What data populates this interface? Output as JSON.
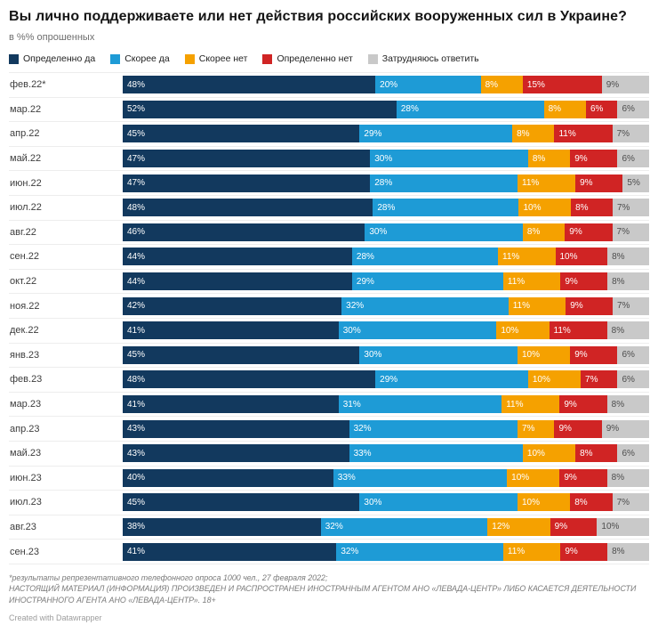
{
  "header": {
    "title": "Вы лично поддерживаете или нет действия российских вооруженных сил в Украине?",
    "subtitle": "в %% опрошенных"
  },
  "chart_data": {
    "type": "bar",
    "variant": "horizontal-stacked-100",
    "unit": "%",
    "xlim": [
      0,
      100
    ],
    "grid": false,
    "legend_position": "top",
    "value_labels": "inside-left",
    "categories": [
      "фев.22*",
      "мар.22",
      "апр.22",
      "май.22",
      "июн.22",
      "июл.22",
      "авг.22",
      "сен.22",
      "окт.22",
      "ноя.22",
      "дек.22",
      "янв.23",
      "фев.23",
      "мар.23",
      "апр.23",
      "май.23",
      "июн.23",
      "июл.23",
      "авг.23",
      "сен.23"
    ],
    "series": [
      {
        "name": "Определенно да",
        "color": "#12395E",
        "text_color": "#ffffff",
        "values": [
          48,
          52,
          45,
          47,
          47,
          48,
          46,
          44,
          44,
          42,
          41,
          45,
          48,
          41,
          43,
          43,
          40,
          45,
          38,
          41
        ]
      },
      {
        "name": "Скорее да",
        "color": "#1E9BD6",
        "text_color": "#ffffff",
        "values": [
          20,
          28,
          29,
          30,
          28,
          28,
          30,
          28,
          29,
          32,
          30,
          30,
          29,
          31,
          32,
          33,
          33,
          30,
          32,
          32
        ]
      },
      {
        "name": "Скорее нет",
        "color": "#F5A100",
        "text_color": "#ffffff",
        "values": [
          8,
          8,
          8,
          8,
          11,
          10,
          8,
          11,
          11,
          11,
          10,
          10,
          10,
          11,
          7,
          10,
          10,
          10,
          12,
          11
        ]
      },
      {
        "name": "Определенно нет",
        "color": "#D02424",
        "text_color": "#ffffff",
        "values": [
          15,
          6,
          11,
          9,
          9,
          8,
          9,
          10,
          9,
          9,
          11,
          9,
          7,
          9,
          9,
          8,
          9,
          8,
          9,
          9
        ]
      },
      {
        "name": "Затрудняюсь ответить",
        "color": "#C9C9C9",
        "text_color": "#4d4d4d",
        "values": [
          9,
          6,
          7,
          6,
          5,
          7,
          7,
          8,
          8,
          7,
          8,
          6,
          6,
          8,
          9,
          6,
          8,
          7,
          10,
          8
        ]
      }
    ]
  },
  "footer": {
    "note_line1": "*результаты репрезентативного телефонного опроса 1000 чел., 27 февраля 2022;",
    "note_line2": "НАСТОЯЩИЙ МАТЕРИАЛ (ИНФОРМАЦИЯ) ПРОИЗВЕДЕН И РАСПРОСТРАНЕН ИНОСТРАННЫМ АГЕНТОМ АНО «ЛЕВАДА-ЦЕНТР» ЛИБО КАСАЕТСЯ ДЕЯТЕЛЬНОСТИ ИНОСТРАННОГО АГЕНТА АНО «ЛЕВАДА-ЦЕНТР». 18+",
    "attribution": "Created with Datawrapper"
  }
}
